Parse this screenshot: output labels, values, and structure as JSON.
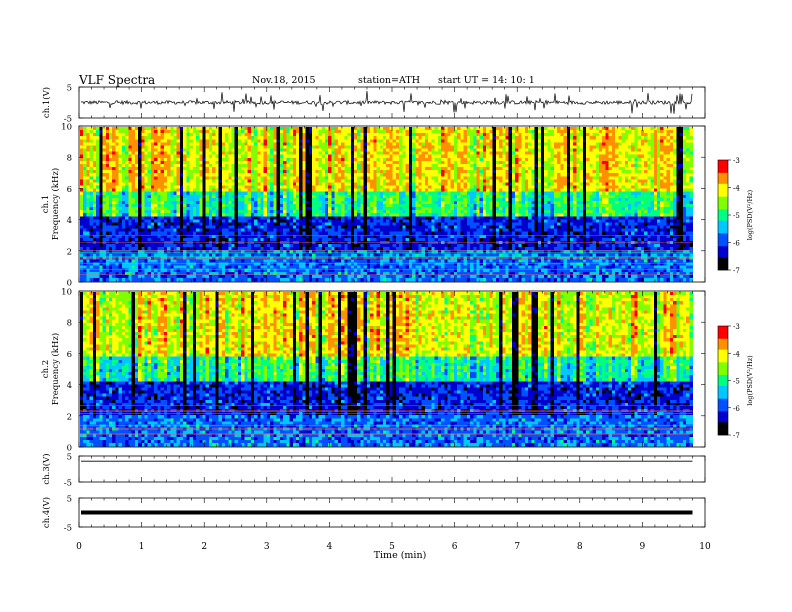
{
  "header": {
    "title": "VLF  Spectra",
    "date": "Nov.18, 2015",
    "station": "station=ATH",
    "start_ut": "start  UT  =    14: 10: 1"
  },
  "colorbar": {
    "label": "log(PSD(V²/Hz)",
    "tick_labels": [
      "-3",
      "-4",
      "-5",
      "-6",
      "-7"
    ],
    "colors": [
      "#000000",
      "#0000cc",
      "#0050ff",
      "#00c8ff",
      "#00ff80",
      "#80ff00",
      "#ffff00",
      "#ff9000",
      "#ff0000",
      "#ffffff"
    ]
  },
  "chart_data": [
    {
      "type": "line",
      "panel": "ch.1 waveform",
      "ylabel": "ch.1(V)",
      "ylim": [
        -5,
        5
      ],
      "y_tick_labels": [
        "5",
        "-5"
      ],
      "series": [
        {
          "values_description": "noisy trace near 0 V with spikes",
          "mean": 0.0
        }
      ]
    },
    {
      "type": "heatmap",
      "panel": "ch.1 spectrogram",
      "ylabel": "Frequency  (kHz)",
      "ylabel_channel": "ch.1",
      "ylim": [
        0,
        10
      ],
      "y_tick_labels": [
        "0",
        "2",
        "4",
        "6",
        "8",
        "10"
      ],
      "clim": [
        -7,
        -3
      ]
    },
    {
      "type": "heatmap",
      "panel": "ch.2 spectrogram",
      "ylabel": "Frequency  (kHz)",
      "ylabel_channel": "ch.2",
      "ylim": [
        0,
        10
      ],
      "y_tick_labels": [
        "0",
        "2",
        "4",
        "6",
        "8",
        "10"
      ],
      "clim": [
        -7,
        -3
      ]
    },
    {
      "type": "line",
      "panel": "ch.3 waveform",
      "ylabel": "ch.3(V)",
      "ylim": [
        -5,
        5
      ],
      "y_tick_labels": [
        "5",
        "-5"
      ],
      "series": [
        {
          "values_description": "flat trace",
          "mean": 3.0
        }
      ]
    },
    {
      "type": "line",
      "panel": "ch.4 waveform",
      "ylabel": "ch.4(V)",
      "ylim": [
        -5,
        5
      ],
      "y_tick_labels": [
        "5",
        "-5"
      ],
      "series": [
        {
          "values_description": "dense band near 0 V",
          "mean": 0.0
        }
      ]
    }
  ],
  "x_axis": {
    "label": "Time  (min)",
    "tick_labels": [
      "0",
      "1",
      "2",
      "3",
      "4",
      "5",
      "6",
      "7",
      "8",
      "9",
      "10"
    ],
    "xlim": [
      0,
      10
    ],
    "data_end": 9.8
  }
}
